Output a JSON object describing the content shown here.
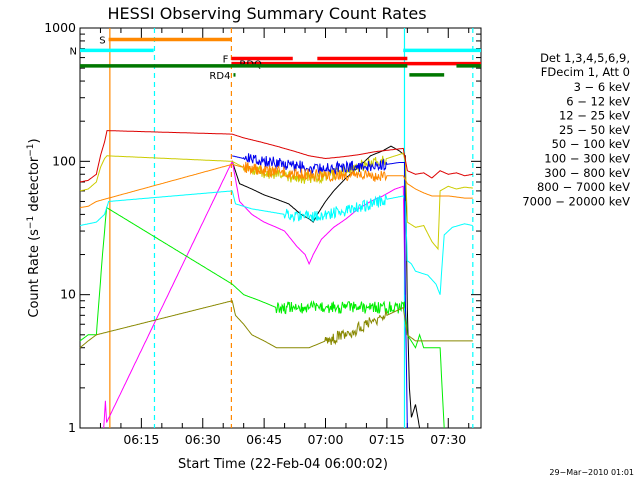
{
  "chart_data": {
    "type": "line",
    "title": "HESSI Observing Summary Count Rates",
    "xlabel": "Start Time (22-Feb-04 06:00:02)",
    "ylabel_main": "Count Rate (s",
    "ylabel_exp1": "−1",
    "ylabel_mid": " detector",
    "ylabel_exp2": "−1",
    "ylabel_end": ")",
    "yscale": "log",
    "ylim": [
      1,
      1000
    ],
    "xlim_minutes": [
      0,
      98
    ],
    "xtick_labels": [
      "06:15",
      "06:30",
      "06:45",
      "07:00",
      "07:15",
      "07:30"
    ],
    "xticks_minutes": [
      15,
      30,
      45,
      60,
      75,
      90
    ],
    "ytick_labels": [
      "1",
      "10",
      "100",
      "1000"
    ],
    "ytick_values": [
      1,
      10,
      100,
      1000
    ],
    "legend": {
      "header_line1": "Det 1,3,4,5,6,9,",
      "header_line2": "FDecim 1, Att 0",
      "entries": [
        {
          "label": "3 − 6 keV",
          "color": "#000000"
        },
        {
          "label": "6 − 12 keV",
          "color": "#ff00ff"
        },
        {
          "label": "12 − 25 keV",
          "color": "#00ee00"
        },
        {
          "label": "25 − 50 keV",
          "color": "#00ffff"
        },
        {
          "label": "50 − 100 keV",
          "color": "#cccc00"
        },
        {
          "label": "100 − 300 keV",
          "color": "#dd0000"
        },
        {
          "label": "300 − 800 keV",
          "color": "#0000ee"
        },
        {
          "label": "800 − 7000 keV",
          "color": "#ff8800"
        },
        {
          "label": "7000 − 20000 keV",
          "color": "#888800"
        }
      ]
    },
    "flags": [
      {
        "label": "S",
        "color": "#ff8800",
        "y": 820,
        "segments": [
          [
            7,
            37
          ]
        ]
      },
      {
        "label": "N",
        "color": "#00ffff",
        "y": 680,
        "segments": [
          [
            0,
            18
          ],
          [
            79,
            98
          ]
        ]
      },
      {
        "label": "F",
        "color": "#ff0000",
        "y": 590,
        "segments": [
          [
            37,
            52
          ],
          [
            58,
            80
          ]
        ]
      },
      {
        "label": "RDQ",
        "color": "#ff0000",
        "y": 540,
        "segments": [
          [
            37,
            98
          ]
        ]
      },
      {
        "label": "",
        "color": "#007700",
        "y": 520,
        "segments": [
          [
            0,
            80
          ],
          [
            92,
            98
          ]
        ]
      },
      {
        "label": "RD4",
        "color": "#007700",
        "y": 445,
        "segments": [
          [
            37.5,
            38
          ],
          [
            80.5,
            89
          ]
        ]
      }
    ],
    "vertical_lines": [
      {
        "x": 7.3,
        "color": "#ff8800",
        "style": "solid"
      },
      {
        "x": 18.2,
        "color": "#00ffff",
        "style": "dashed"
      },
      {
        "x": 37.0,
        "color": "#ff8800",
        "style": "dashed"
      },
      {
        "x": 79.3,
        "color": "#00ffff",
        "style": "solid"
      },
      {
        "x": 96.0,
        "color": "#00ffff",
        "style": "dashed"
      }
    ],
    "series": [
      {
        "name": "3 − 6 keV",
        "color": "#000000",
        "points": [
          [
            37.2,
            100
          ],
          [
            39,
            68
          ],
          [
            42,
            62
          ],
          [
            45,
            56
          ],
          [
            48,
            52
          ],
          [
            51,
            48
          ],
          [
            54,
            40
          ],
          [
            56,
            37
          ],
          [
            57,
            35
          ],
          [
            58,
            40
          ],
          [
            60,
            50
          ],
          [
            62,
            60
          ],
          [
            65,
            75
          ],
          [
            68,
            90
          ],
          [
            71,
            110
          ],
          [
            74,
            120
          ],
          [
            76,
            130
          ],
          [
            78,
            120
          ],
          [
            79.5,
            110
          ],
          [
            80,
            8
          ],
          [
            80.5,
            2
          ],
          [
            81,
            1.2
          ],
          [
            82,
            1.5
          ],
          [
            83,
            1
          ]
        ]
      },
      {
        "name": "6 − 12 keV",
        "color": "#ff00ff",
        "points": [
          [
            5.8,
            1
          ],
          [
            6.2,
            1.6
          ],
          [
            6.5,
            1.1
          ],
          [
            37.2,
            100
          ],
          [
            39,
            50
          ],
          [
            42,
            40
          ],
          [
            45,
            35
          ],
          [
            48,
            32
          ],
          [
            50,
            30
          ],
          [
            53,
            23
          ],
          [
            55,
            20
          ],
          [
            56,
            17
          ],
          [
            57,
            20
          ],
          [
            59,
            26
          ],
          [
            62,
            32
          ],
          [
            65,
            37
          ],
          [
            68,
            44
          ],
          [
            71,
            50
          ],
          [
            74,
            55
          ],
          [
            77,
            62
          ],
          [
            79,
            65
          ],
          [
            79.5,
            10
          ]
        ]
      },
      {
        "name": "12 − 25 keV",
        "color": "#00ee00",
        "points": [
          [
            0,
            4.5
          ],
          [
            2,
            5
          ],
          [
            4,
            5
          ],
          [
            5.5,
            20
          ],
          [
            6.5,
            45
          ],
          [
            37.2,
            12
          ],
          [
            40,
            10
          ],
          [
            44,
            9
          ],
          [
            48,
            8
          ],
          [
            55,
            8
          ],
          [
            60,
            8
          ],
          [
            65,
            8
          ],
          [
            70,
            8
          ],
          [
            75,
            8
          ],
          [
            79.5,
            8
          ],
          [
            80,
            5
          ],
          [
            82,
            4
          ],
          [
            83,
            5
          ],
          [
            84,
            4
          ],
          [
            86,
            4
          ],
          [
            87.5,
            4
          ],
          [
            88,
            4
          ],
          [
            89,
            1
          ]
        ]
      },
      {
        "name": "25 − 50 keV",
        "color": "#00ffff",
        "points": [
          [
            0,
            33
          ],
          [
            4,
            35
          ],
          [
            6,
            40
          ],
          [
            7,
            50
          ],
          [
            37.2,
            60
          ],
          [
            38,
            48
          ],
          [
            42,
            44
          ],
          [
            46,
            42
          ],
          [
            50,
            40
          ],
          [
            55,
            38
          ],
          [
            60,
            40
          ],
          [
            65,
            43
          ],
          [
            70,
            47
          ],
          [
            75,
            52
          ],
          [
            79,
            55
          ],
          [
            79.5,
            50
          ],
          [
            80,
            18
          ],
          [
            81,
            17
          ],
          [
            82,
            15
          ],
          [
            85,
            14
          ],
          [
            87,
            12
          ],
          [
            88,
            10
          ],
          [
            89,
            28
          ],
          [
            91,
            32
          ],
          [
            94,
            34
          ],
          [
            96,
            33
          ]
        ]
      },
      {
        "name": "50 − 100 keV",
        "color": "#cccc00",
        "points": [
          [
            0,
            60
          ],
          [
            2,
            62
          ],
          [
            4,
            70
          ],
          [
            5,
            90
          ],
          [
            6,
            105
          ],
          [
            6.6,
            110
          ],
          [
            37.2,
            100
          ],
          [
            40,
            90
          ],
          [
            45,
            82
          ],
          [
            50,
            78
          ],
          [
            55,
            75
          ],
          [
            60,
            78
          ],
          [
            65,
            85
          ],
          [
            70,
            95
          ],
          [
            75,
            105
          ],
          [
            79,
            115
          ],
          [
            79.5,
            100
          ],
          [
            80,
            35
          ],
          [
            82,
            32
          ],
          [
            84,
            33
          ],
          [
            86,
            25
          ],
          [
            87.5,
            22
          ],
          [
            88,
            60
          ],
          [
            90,
            65
          ],
          [
            92,
            62
          ],
          [
            94,
            64
          ],
          [
            96,
            63
          ]
        ]
      },
      {
        "name": "100 − 300 keV",
        "color": "#dd0000",
        "points": [
          [
            0,
            70
          ],
          [
            2,
            72
          ],
          [
            4,
            80
          ],
          [
            5,
            110
          ],
          [
            6,
            140
          ],
          [
            6.6,
            170
          ],
          [
            37.2,
            160
          ],
          [
            40,
            150
          ],
          [
            44,
            140
          ],
          [
            48,
            130
          ],
          [
            52,
            120
          ],
          [
            56,
            110
          ],
          [
            60,
            105
          ],
          [
            64,
            108
          ],
          [
            68,
            112
          ],
          [
            72,
            118
          ],
          [
            76,
            122
          ],
          [
            79,
            125
          ],
          [
            80,
            85
          ],
          [
            82,
            80
          ],
          [
            84,
            82
          ],
          [
            86,
            75
          ],
          [
            88,
            85
          ],
          [
            90,
            80
          ],
          [
            92,
            82
          ],
          [
            94,
            78
          ],
          [
            96,
            80
          ]
        ]
      },
      {
        "name": "300 − 800 keV",
        "color": "#0000ee",
        "points": [
          [
            37.2,
            110
          ],
          [
            40,
            105
          ],
          [
            45,
            100
          ],
          [
            50,
            95
          ],
          [
            55,
            90
          ],
          [
            60,
            88
          ],
          [
            65,
            90
          ],
          [
            70,
            92
          ],
          [
            75,
            95
          ],
          [
            78,
            98
          ],
          [
            79.3,
            98
          ],
          [
            79.5,
            10
          ],
          [
            80,
            1
          ]
        ]
      },
      {
        "name": "800 − 7000 keV",
        "color": "#ff8800",
        "points": [
          [
            0,
            45
          ],
          [
            2,
            46
          ],
          [
            4,
            50
          ],
          [
            37.2,
            95
          ],
          [
            40,
            90
          ],
          [
            45,
            85
          ],
          [
            50,
            82
          ],
          [
            55,
            80
          ],
          [
            60,
            78
          ],
          [
            65,
            78
          ],
          [
            70,
            78
          ],
          [
            75,
            78
          ],
          [
            79,
            78
          ],
          [
            80,
            68
          ],
          [
            82,
            62
          ],
          [
            84,
            58
          ],
          [
            86,
            55
          ],
          [
            88,
            55
          ],
          [
            90,
            55
          ],
          [
            92,
            54
          ],
          [
            94,
            53
          ],
          [
            96,
            53
          ]
        ]
      },
      {
        "name": "7000 − 20000 keV",
        "color": "#888800",
        "points": [
          [
            0,
            4
          ],
          [
            2,
            4.5
          ],
          [
            4,
            5
          ],
          [
            37.2,
            9
          ],
          [
            38,
            7
          ],
          [
            40,
            6
          ],
          [
            42,
            5
          ],
          [
            45,
            4.5
          ],
          [
            48,
            4
          ],
          [
            52,
            4
          ],
          [
            56,
            4
          ],
          [
            60,
            4.5
          ],
          [
            65,
            5
          ],
          [
            70,
            6
          ],
          [
            75,
            7
          ],
          [
            79,
            8
          ],
          [
            80,
            5
          ],
          [
            82,
            4.5
          ],
          [
            84,
            4.5
          ],
          [
            86,
            4.5
          ],
          [
            88,
            4.5
          ],
          [
            90,
            4.5
          ],
          [
            94,
            4.5
          ],
          [
            96,
            4.5
          ]
        ]
      }
    ]
  },
  "footer": {
    "timestamp": "29−Mar−2010 01:01"
  }
}
